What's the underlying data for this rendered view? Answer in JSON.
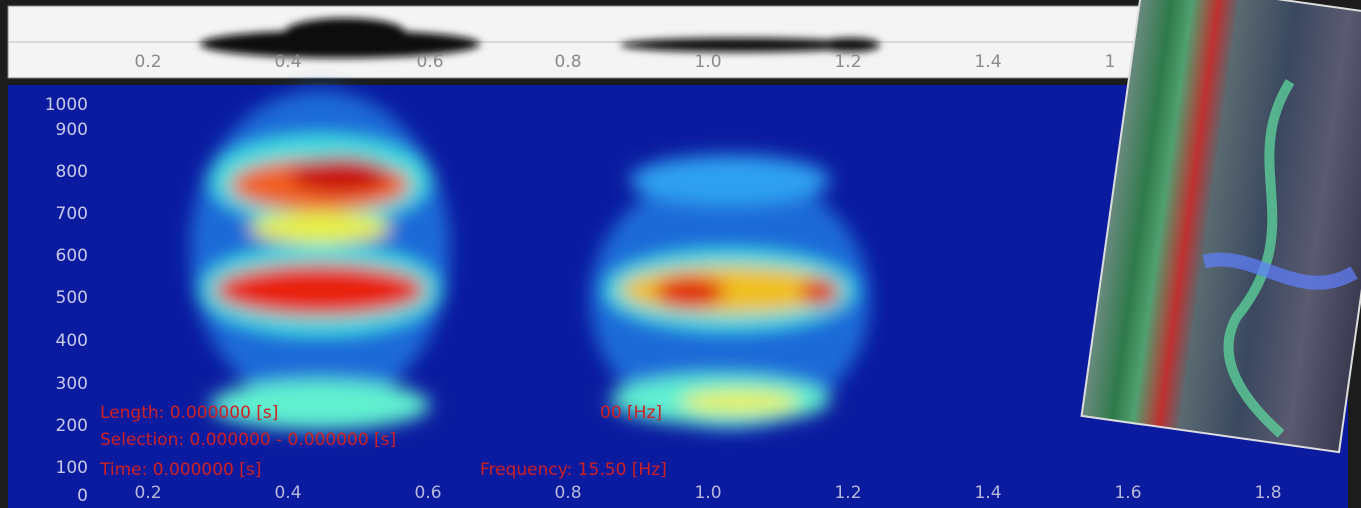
{
  "waveform": {
    "ticks": [
      "0.2",
      "0.4",
      "0.6",
      "0.8",
      "1.0",
      "1.2",
      "1.4",
      "1"
    ]
  },
  "spectrogram": {
    "y_labels": [
      "1000",
      "900",
      "800",
      "700",
      "600",
      "500",
      "400",
      "300",
      "200",
      "100",
      "0"
    ],
    "x_labels": [
      "0.2",
      "0.4",
      "0.6",
      "0.8",
      "1.0",
      "1.2",
      "1.4",
      "1.6",
      "1.8"
    ]
  },
  "status": {
    "length": "Length: 0.000000 [s]",
    "length_hz": "00 [Hz]",
    "selection": "Selection: 0.000000 - 0.000000 [s]",
    "time": "Time: 0.000000 [s]",
    "frequency": "Frequency: 15.50 [Hz]"
  }
}
